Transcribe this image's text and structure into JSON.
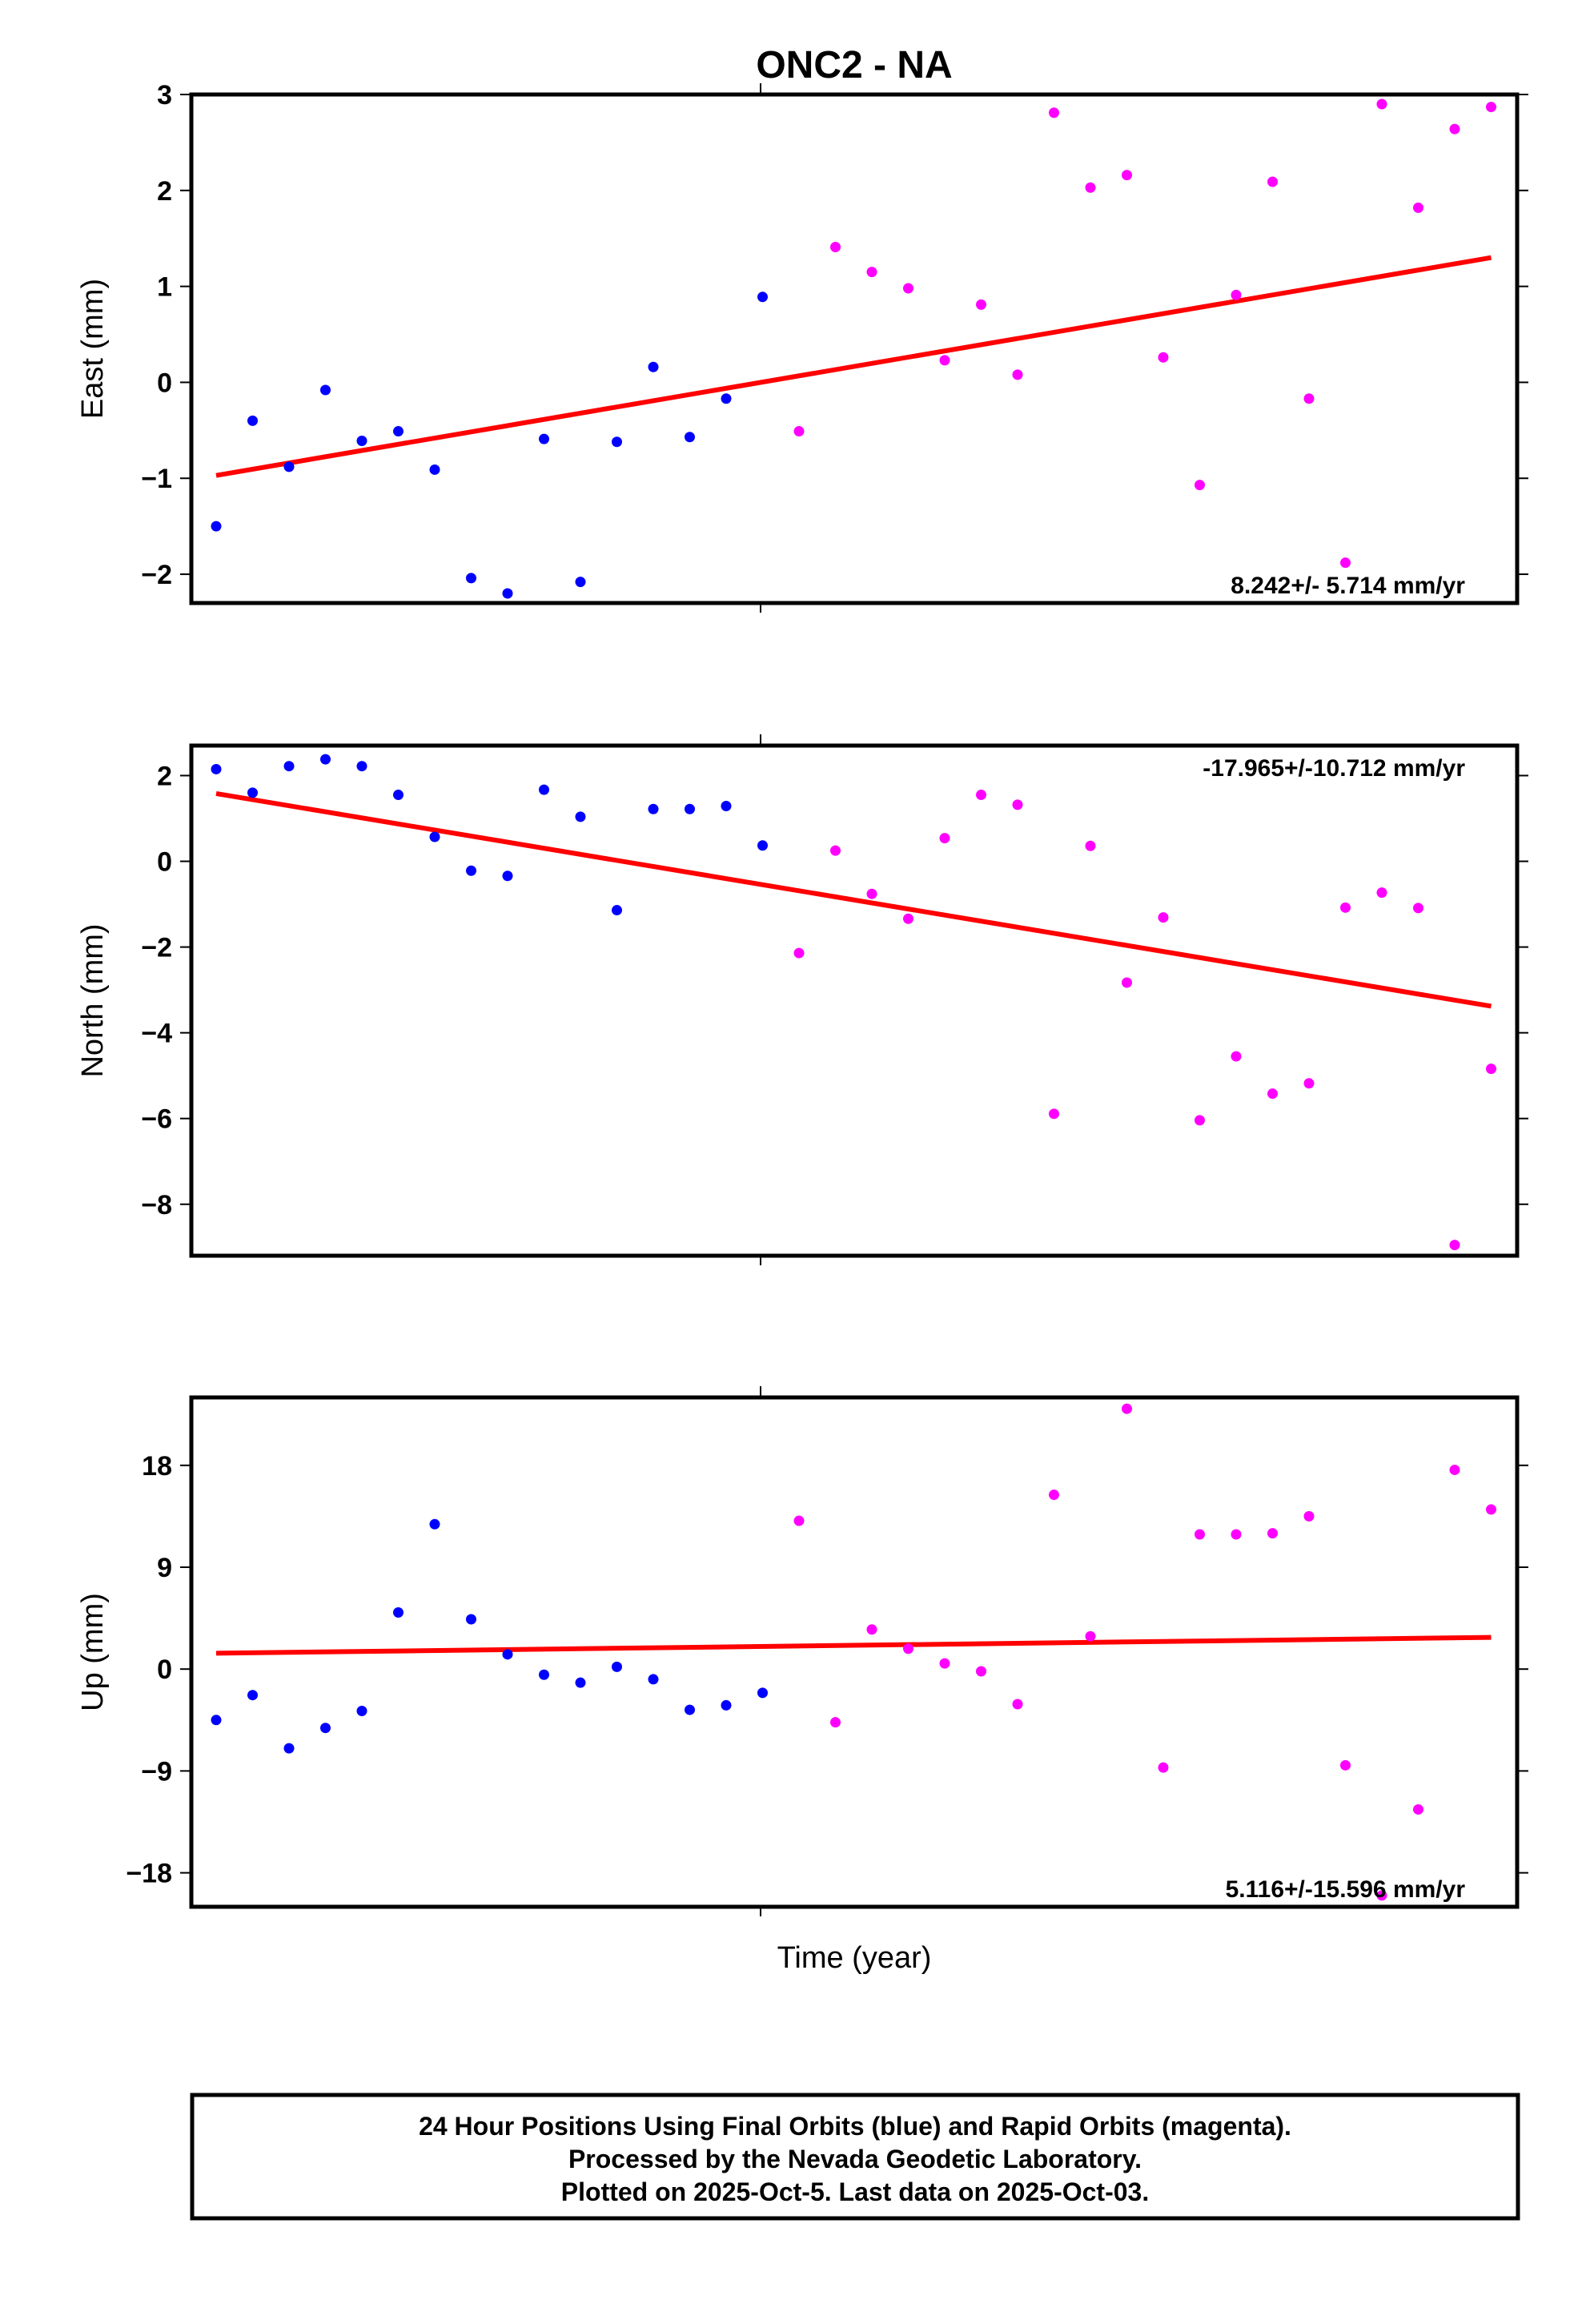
{
  "chart_data": {
    "type": "scatter",
    "title": "ONC2 - NA",
    "xlabel": "Time (year)",
    "legend": [
      "24 Hour Positions Using Final Orbits (blue) and Rapid Orbits (magenta).",
      "Processed by the Nevada Geodetic Laboratory.",
      "Plotted on 2025-Oct-5. Last data on 2025-Oct-03."
    ],
    "colors": {
      "final": "#0000ff",
      "rapid": "#ff00ff",
      "trend": "#ff0000"
    },
    "panels": [
      {
        "ylabel": "East (mm)",
        "rate": "8.242+/- 5.714 mm/yr",
        "ylim": [
          -2.3,
          3.0
        ],
        "yticks": [
          3,
          2,
          1,
          0,
          -1,
          -2
        ],
        "ytick_labels": [
          "3",
          "2",
          "1",
          "0",
          "−1",
          "−2"
        ],
        "trend": [
          -0.97,
          1.3
        ],
        "final": [
          -1.5,
          -0.4,
          -0.88,
          -0.08,
          -0.61,
          -0.51,
          -0.91,
          -2.04,
          -2.2,
          -0.59,
          -2.08,
          -0.62,
          0.16,
          -0.57,
          -0.17,
          0.89
        ],
        "rapid": [
          -0.51,
          1.41,
          1.15,
          0.98,
          0.23,
          0.81,
          0.08,
          2.81,
          2.03,
          2.16,
          0.26,
          -1.07,
          0.91,
          2.09,
          -0.17,
          -1.88,
          2.9,
          1.82,
          2.64,
          2.87
        ]
      },
      {
        "ylabel": "North (mm)",
        "rate": "-17.965+/-10.712 mm/yr",
        "ylim": [
          -9.2,
          2.7
        ],
        "yticks": [
          2,
          0,
          -2,
          -4,
          -6,
          -8
        ],
        "ytick_labels": [
          "2",
          "0",
          "−2",
          "−4",
          "−6",
          "−8"
        ],
        "trend": [
          1.58,
          -3.38
        ],
        "final": [
          2.15,
          1.6,
          2.22,
          2.38,
          2.22,
          1.55,
          0.57,
          -0.22,
          -0.34,
          1.67,
          1.04,
          -1.14,
          1.22,
          1.22,
          1.29,
          0.37
        ],
        "rapid": [
          -2.14,
          0.25,
          -0.76,
          -1.34,
          0.54,
          1.55,
          1.32,
          -5.89,
          0.36,
          -2.83,
          -1.31,
          -6.04,
          -4.55,
          -5.42,
          -5.18,
          -1.08,
          -0.73,
          -1.09,
          -8.95,
          -4.84
        ]
      },
      {
        "ylabel": "Up (mm)",
        "rate": "5.116+/-15.596 mm/yr",
        "ylim": [
          -21,
          24
        ],
        "yticks": [
          18,
          9,
          0,
          -9,
          -18
        ],
        "ytick_labels": [
          "18",
          "9",
          "0",
          "−9",
          "−18"
        ],
        "trend": [
          1.4,
          2.8
        ],
        "final": [
          -4.5,
          -2.3,
          -7.0,
          -5.2,
          -3.7,
          5.0,
          12.8,
          4.4,
          1.3,
          -0.5,
          -1.2,
          0.2,
          -0.9,
          -3.6,
          -3.2,
          -2.1
        ],
        "rapid": [
          13.1,
          -4.7,
          3.5,
          1.8,
          0.5,
          -0.2,
          -3.1,
          15.4,
          2.9,
          23.0,
          -8.7,
          11.9,
          11.9,
          12.0,
          13.5,
          -8.5,
          -20.0,
          -12.4,
          17.6,
          14.1
        ]
      }
    ]
  }
}
